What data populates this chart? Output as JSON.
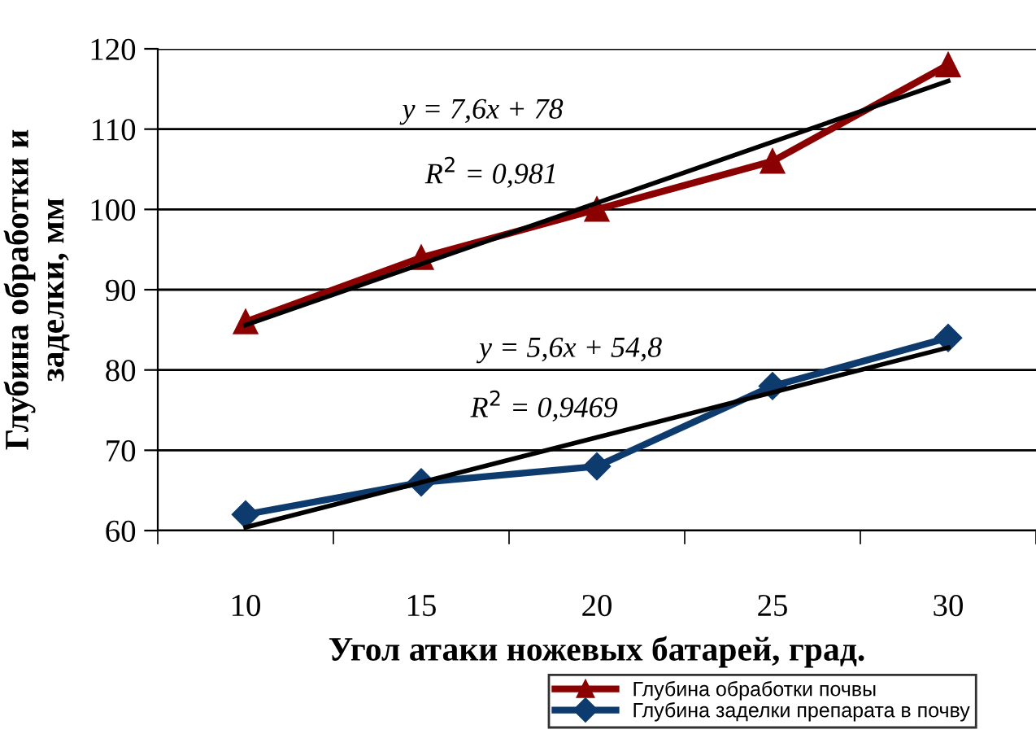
{
  "chart_data": {
    "type": "line",
    "categories": [
      "10",
      "15",
      "20",
      "25",
      "30"
    ],
    "xlabel": "Угол атаки ножевых батарей, град.",
    "ylabel": "Глубина обработки и\nзаделки, мм",
    "series": [
      {
        "name": "Глубина обработки почвы",
        "color": "#8b0000",
        "values": [
          86,
          94,
          100,
          106,
          118
        ],
        "marker": "triangle"
      },
      {
        "name": "Глубина заделки препарата в почву",
        "color": "#0d3b6e",
        "values": [
          62,
          66,
          68,
          78,
          84
        ],
        "marker": "diamond"
      },
      {
        "color": "#000000",
        "values": [
          85.6,
          93.2,
          100.8,
          108.4,
          116
        ],
        "marker": "none"
      },
      {
        "color": "#000000",
        "values": [
          60.4,
          66,
          71.6,
          77.2,
          82.8
        ],
        "marker": "none"
      }
    ],
    "ylim": [
      60,
      120
    ],
    "yticks": [
      60,
      70,
      80,
      90,
      100,
      110,
      120
    ],
    "grid": "y",
    "legend": "bottom right",
    "annotations": [
      "y = 7,6x + 78",
      "R$^{2}$ = 0,981",
      "y = 5,6x + 54,8",
      "R$^{2}$ = 0,9469"
    ]
  }
}
